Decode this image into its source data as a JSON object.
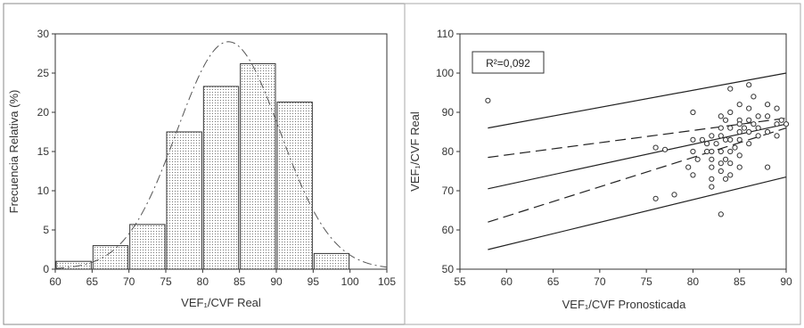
{
  "chart_data": [
    {
      "type": "bar",
      "title": "",
      "xlabel": "VEF₁/CVF Real",
      "ylabel": "Frecuencia Relativa (%)",
      "categories": [
        "60-65",
        "65-70",
        "70-75",
        "75-80",
        "80-85",
        "85-90",
        "90-95",
        "95-100"
      ],
      "bins": [
        [
          60,
          65
        ],
        [
          65,
          70
        ],
        [
          70,
          75
        ],
        [
          75,
          80
        ],
        [
          80,
          85
        ],
        [
          85,
          90
        ],
        [
          90,
          95
        ],
        [
          95,
          100
        ]
      ],
      "values": [
        1,
        3,
        5.7,
        17.5,
        23.3,
        26.2,
        21.3,
        2
      ],
      "xlim": [
        60,
        105
      ],
      "ylim": [
        0,
        30
      ],
      "xticks": [
        60,
        65,
        70,
        75,
        80,
        85,
        90,
        95,
        100,
        105
      ],
      "yticks": [
        0,
        5,
        10,
        15,
        20,
        25,
        30
      ],
      "normal_curve": {
        "mean": 83.5,
        "sd": 7.0,
        "peak": 29.0
      },
      "grid": false
    },
    {
      "type": "scatter",
      "title": "",
      "xlabel": "VEF₁/CVF Pronosticada",
      "ylabel": "VEF₁/CVF Real",
      "annotation": "R²=0,092",
      "xlim": [
        55,
        90
      ],
      "ylim": [
        50,
        110
      ],
      "xticks": [
        55,
        60,
        65,
        70,
        75,
        80,
        85,
        90
      ],
      "yticks": [
        50,
        60,
        70,
        80,
        90,
        100,
        110
      ],
      "points": [
        [
          58,
          93
        ],
        [
          76,
          68
        ],
        [
          76,
          81
        ],
        [
          77,
          80.5
        ],
        [
          78,
          69
        ],
        [
          79.5,
          76
        ],
        [
          80,
          90
        ],
        [
          80,
          83
        ],
        [
          80,
          80
        ],
        [
          80,
          74
        ],
        [
          80.5,
          78
        ],
        [
          81,
          83
        ],
        [
          81.5,
          82
        ],
        [
          81.5,
          80
        ],
        [
          82,
          84
        ],
        [
          82,
          80
        ],
        [
          82,
          78
        ],
        [
          82,
          76
        ],
        [
          82,
          73
        ],
        [
          82,
          71
        ],
        [
          82.5,
          82
        ],
        [
          83,
          89
        ],
        [
          83,
          86
        ],
        [
          83,
          84
        ],
        [
          83,
          80
        ],
        [
          83,
          77
        ],
        [
          83,
          75
        ],
        [
          83,
          64
        ],
        [
          83.5,
          88
        ],
        [
          83.5,
          83
        ],
        [
          83.5,
          78
        ],
        [
          83.5,
          73
        ],
        [
          84,
          96
        ],
        [
          84,
          90
        ],
        [
          84,
          86
        ],
        [
          84,
          83
        ],
        [
          84,
          80
        ],
        [
          84,
          77
        ],
        [
          84,
          74
        ],
        [
          84.5,
          81
        ],
        [
          85,
          92
        ],
        [
          85,
          88
        ],
        [
          85,
          87
        ],
        [
          85,
          85
        ],
        [
          85,
          83
        ],
        [
          85,
          79
        ],
        [
          85,
          76
        ],
        [
          85.5,
          86
        ],
        [
          86,
          97
        ],
        [
          86,
          91
        ],
        [
          86,
          88
        ],
        [
          86,
          85
        ],
        [
          86,
          82
        ],
        [
          86.5,
          94
        ],
        [
          86.5,
          87
        ],
        [
          87,
          89
        ],
        [
          87,
          86
        ],
        [
          87,
          84
        ],
        [
          88,
          92
        ],
        [
          88,
          89
        ],
        [
          88,
          85
        ],
        [
          88,
          76
        ],
        [
          89,
          91
        ],
        [
          89,
          87
        ],
        [
          89,
          84
        ],
        [
          89.5,
          88
        ],
        [
          90,
          87
        ]
      ],
      "lines": [
        {
          "role": "regression",
          "style": "solid",
          "x": [
            58,
            90
          ],
          "y": [
            70.5,
            87
          ]
        },
        {
          "role": "confidence-upper",
          "style": "dashed",
          "x": [
            58,
            90
          ],
          "y": [
            78.5,
            88.5
          ]
        },
        {
          "role": "confidence-lower",
          "style": "dashed",
          "x": [
            58,
            90
          ],
          "y": [
            62,
            86
          ]
        },
        {
          "role": "prediction-upper",
          "style": "solid",
          "x": [
            58,
            90
          ],
          "y": [
            86,
            100
          ]
        },
        {
          "role": "prediction-lower",
          "style": "solid",
          "x": [
            58,
            90
          ],
          "y": [
            55,
            73.5
          ]
        }
      ],
      "grid": false
    }
  ]
}
